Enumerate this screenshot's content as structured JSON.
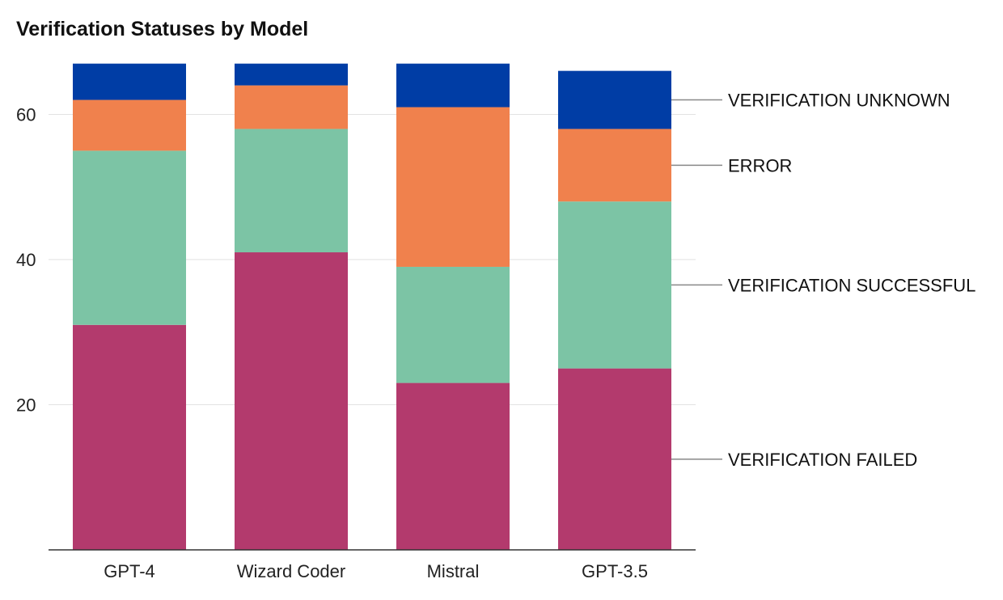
{
  "chart_data": {
    "type": "bar",
    "stacked": true,
    "title": "Verification Statuses by Model",
    "categories": [
      "GPT-4",
      "Wizard Coder",
      "Mistral",
      "GPT-3.5"
    ],
    "series": [
      {
        "name": "VERIFICATION FAILED",
        "color": "#b33a6d",
        "values": [
          31,
          41,
          23,
          25
        ]
      },
      {
        "name": "VERIFICATION SUCCESSFUL",
        "color": "#7cc4a5",
        "values": [
          24,
          17,
          16,
          23
        ]
      },
      {
        "name": "ERROR",
        "color": "#f0814d",
        "values": [
          7,
          6,
          22,
          10
        ]
      },
      {
        "name": "VERIFICATION UNKNOWN",
        "color": "#003da5",
        "values": [
          5,
          3,
          6,
          8
        ]
      }
    ],
    "yticks": [
      20,
      40,
      60
    ],
    "ylim": [
      0,
      67
    ],
    "grid": true,
    "legend": "right, inline labels",
    "xlabel": "",
    "ylabel": ""
  }
}
